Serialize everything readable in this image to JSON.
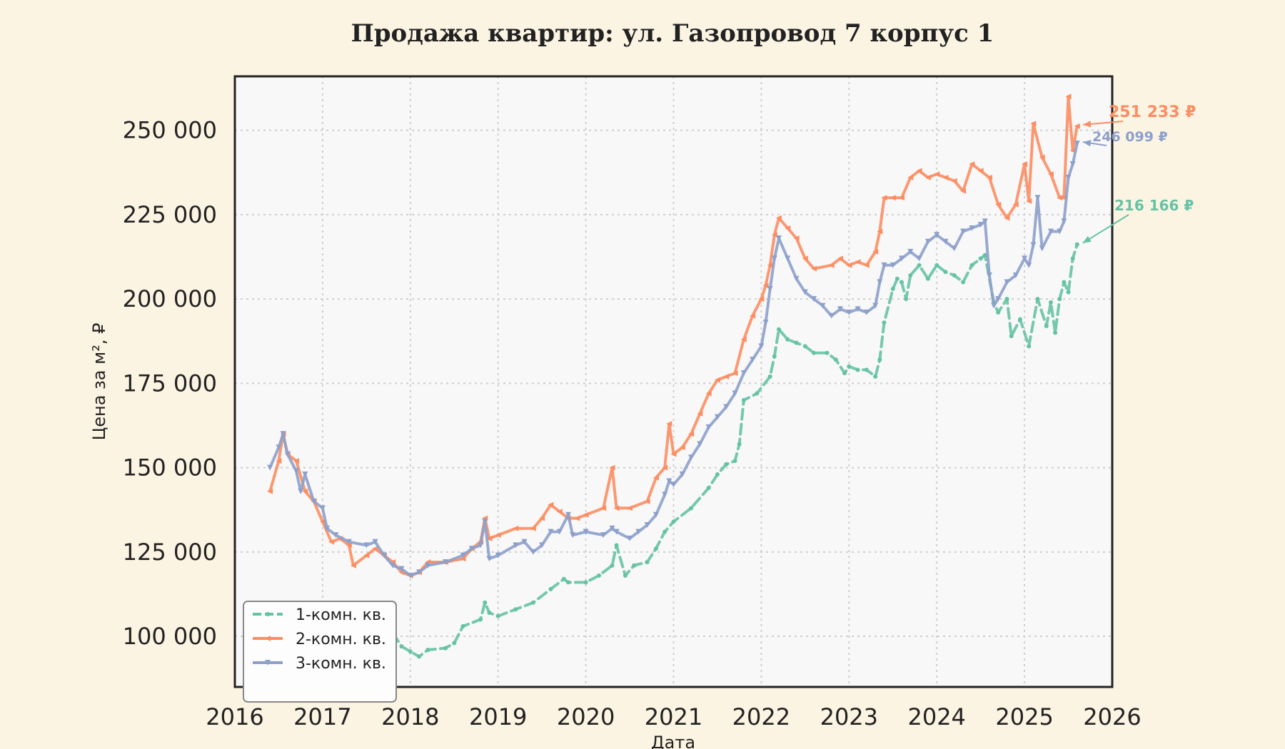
{
  "chart_data": {
    "type": "line",
    "title": "Продажа квартир: ул. Газопровод 7 корпус 1",
    "xlabel": "Дата",
    "ylabel": "Цена за м², ₽",
    "xlim": [
      2016,
      2026
    ],
    "ylim": [
      85000,
      266000
    ],
    "x_ticks": [
      "2016",
      "2017",
      "2018",
      "2019",
      "2020",
      "2021",
      "2022",
      "2023",
      "2024",
      "2025",
      "2026"
    ],
    "y_ticks": [
      "100 000",
      "125 000",
      "150 000",
      "175 000",
      "200 000",
      "225 000",
      "250 000"
    ],
    "grid": true,
    "legend_position": "bottom-left",
    "series": [
      {
        "name": "1-комн. кв.",
        "color": "#66c2a5",
        "line_style": "dashed",
        "marker": "circle",
        "end_label": "216 166 ₽",
        "points": [
          [
            2017.8,
            101000
          ],
          [
            2017.9,
            97000
          ],
          [
            2018.0,
            95500
          ],
          [
            2018.1,
            94000
          ],
          [
            2018.2,
            96000
          ],
          [
            2018.4,
            96500
          ],
          [
            2018.5,
            98000
          ],
          [
            2018.6,
            103000
          ],
          [
            2018.8,
            105000
          ],
          [
            2018.85,
            110000
          ],
          [
            2018.9,
            107000
          ],
          [
            2019.0,
            106000
          ],
          [
            2019.2,
            108000
          ],
          [
            2019.4,
            110000
          ],
          [
            2019.6,
            114000
          ],
          [
            2019.75,
            117000
          ],
          [
            2019.8,
            116000
          ],
          [
            2020.0,
            116000
          ],
          [
            2020.15,
            118000
          ],
          [
            2020.3,
            121000
          ],
          [
            2020.35,
            127000
          ],
          [
            2020.45,
            118000
          ],
          [
            2020.55,
            121000
          ],
          [
            2020.7,
            122000
          ],
          [
            2020.8,
            126000
          ],
          [
            2020.9,
            131000
          ],
          [
            2021.0,
            134000
          ],
          [
            2021.2,
            138000
          ],
          [
            2021.4,
            144000
          ],
          [
            2021.5,
            148000
          ],
          [
            2021.6,
            151000
          ],
          [
            2021.7,
            152000
          ],
          [
            2021.75,
            157000
          ],
          [
            2021.8,
            170000
          ],
          [
            2021.95,
            172000
          ],
          [
            2022.1,
            177000
          ],
          [
            2022.15,
            183000
          ],
          [
            2022.2,
            191000
          ],
          [
            2022.3,
            188000
          ],
          [
            2022.4,
            187000
          ],
          [
            2022.5,
            186000
          ],
          [
            2022.6,
            184000
          ],
          [
            2022.75,
            184000
          ],
          [
            2022.85,
            182000
          ],
          [
            2022.95,
            178000
          ],
          [
            2023.0,
            180000
          ],
          [
            2023.1,
            179000
          ],
          [
            2023.2,
            179000
          ],
          [
            2023.3,
            177000
          ],
          [
            2023.35,
            182000
          ],
          [
            2023.4,
            193000
          ],
          [
            2023.5,
            203000
          ],
          [
            2023.55,
            206000
          ],
          [
            2023.6,
            205000
          ],
          [
            2023.65,
            200000
          ],
          [
            2023.7,
            207000
          ],
          [
            2023.8,
            210000
          ],
          [
            2023.9,
            206000
          ],
          [
            2024.0,
            210000
          ],
          [
            2024.1,
            208000
          ],
          [
            2024.2,
            207000
          ],
          [
            2024.3,
            205000
          ],
          [
            2024.4,
            210000
          ],
          [
            2024.5,
            212000
          ],
          [
            2024.55,
            213000
          ],
          [
            2024.65,
            199000
          ],
          [
            2024.7,
            196000
          ],
          [
            2024.8,
            200000
          ],
          [
            2024.85,
            189000
          ],
          [
            2024.95,
            194000
          ],
          [
            2025.05,
            186000
          ],
          [
            2025.15,
            200000
          ],
          [
            2025.25,
            192000
          ],
          [
            2025.3,
            199000
          ],
          [
            2025.35,
            190000
          ],
          [
            2025.4,
            200000
          ],
          [
            2025.45,
            205000
          ],
          [
            2025.5,
            202000
          ],
          [
            2025.55,
            212000
          ],
          [
            2025.6,
            216166
          ]
        ]
      },
      {
        "name": "2-комн. кв.",
        "color": "#fc8d62",
        "line_style": "solid",
        "marker": "triangle-left",
        "end_label": "251 233 ₽",
        "points": [
          [
            2016.4,
            143000
          ],
          [
            2016.5,
            152000
          ],
          [
            2016.55,
            160000
          ],
          [
            2016.6,
            154000
          ],
          [
            2016.7,
            152000
          ],
          [
            2016.8,
            143000
          ],
          [
            2016.9,
            140000
          ],
          [
            2017.0,
            134000
          ],
          [
            2017.1,
            128000
          ],
          [
            2017.2,
            129000
          ],
          [
            2017.3,
            127000
          ],
          [
            2017.35,
            121000
          ],
          [
            2017.5,
            124000
          ],
          [
            2017.6,
            126000
          ],
          [
            2017.7,
            124000
          ],
          [
            2017.8,
            122000
          ],
          [
            2017.9,
            119000
          ],
          [
            2018.0,
            118000
          ],
          [
            2018.1,
            119000
          ],
          [
            2018.2,
            122000
          ],
          [
            2018.4,
            122000
          ],
          [
            2018.6,
            123000
          ],
          [
            2018.7,
            126000
          ],
          [
            2018.8,
            128000
          ],
          [
            2018.85,
            135000
          ],
          [
            2018.9,
            129000
          ],
          [
            2019.0,
            130000
          ],
          [
            2019.2,
            132000
          ],
          [
            2019.4,
            132000
          ],
          [
            2019.5,
            135000
          ],
          [
            2019.6,
            139000
          ],
          [
            2019.7,
            137000
          ],
          [
            2019.8,
            135000
          ],
          [
            2019.9,
            135000
          ],
          [
            2020.0,
            136000
          ],
          [
            2020.2,
            138000
          ],
          [
            2020.3,
            150000
          ],
          [
            2020.35,
            138000
          ],
          [
            2020.5,
            138000
          ],
          [
            2020.7,
            140000
          ],
          [
            2020.8,
            147000
          ],
          [
            2020.9,
            150000
          ],
          [
            2020.95,
            163000
          ],
          [
            2021.0,
            154000
          ],
          [
            2021.1,
            156000
          ],
          [
            2021.2,
            160000
          ],
          [
            2021.3,
            166000
          ],
          [
            2021.4,
            172000
          ],
          [
            2021.5,
            176000
          ],
          [
            2021.6,
            177000
          ],
          [
            2021.7,
            178000
          ],
          [
            2021.8,
            188000
          ],
          [
            2021.9,
            195000
          ],
          [
            2022.0,
            200000
          ],
          [
            2022.05,
            204000
          ],
          [
            2022.1,
            210000
          ],
          [
            2022.15,
            219000
          ],
          [
            2022.2,
            224000
          ],
          [
            2022.3,
            221000
          ],
          [
            2022.4,
            218000
          ],
          [
            2022.5,
            212000
          ],
          [
            2022.6,
            209000
          ],
          [
            2022.8,
            210000
          ],
          [
            2022.9,
            212000
          ],
          [
            2023.0,
            210000
          ],
          [
            2023.1,
            211000
          ],
          [
            2023.2,
            210000
          ],
          [
            2023.3,
            214000
          ],
          [
            2023.35,
            220000
          ],
          [
            2023.4,
            230000
          ],
          [
            2023.5,
            230000
          ],
          [
            2023.6,
            230000
          ],
          [
            2023.7,
            236000
          ],
          [
            2023.8,
            238000
          ],
          [
            2023.9,
            236000
          ],
          [
            2024.0,
            237000
          ],
          [
            2024.1,
            236000
          ],
          [
            2024.2,
            235000
          ],
          [
            2024.3,
            232000
          ],
          [
            2024.4,
            240000
          ],
          [
            2024.5,
            238000
          ],
          [
            2024.6,
            236000
          ],
          [
            2024.7,
            228000
          ],
          [
            2024.8,
            224000
          ],
          [
            2024.9,
            228000
          ],
          [
            2025.0,
            240000
          ],
          [
            2025.05,
            229000
          ],
          [
            2025.1,
            252000
          ],
          [
            2025.2,
            242000
          ],
          [
            2025.3,
            237000
          ],
          [
            2025.4,
            230000
          ],
          [
            2025.45,
            230000
          ],
          [
            2025.5,
            260000
          ],
          [
            2025.55,
            244000
          ],
          [
            2025.6,
            251233
          ]
        ]
      },
      {
        "name": "3-комн. кв.",
        "color": "#8da0cb",
        "line_style": "solid",
        "marker": "triangle-down",
        "end_label": "246 099 ₽",
        "points": [
          [
            2016.4,
            150000
          ],
          [
            2016.5,
            156000
          ],
          [
            2016.55,
            160000
          ],
          [
            2016.6,
            154000
          ],
          [
            2016.7,
            149000
          ],
          [
            2016.75,
            143000
          ],
          [
            2016.8,
            148000
          ],
          [
            2016.9,
            140000
          ],
          [
            2017.0,
            138000
          ],
          [
            2017.05,
            132000
          ],
          [
            2017.15,
            130000
          ],
          [
            2017.3,
            128000
          ],
          [
            2017.5,
            127000
          ],
          [
            2017.6,
            128000
          ],
          [
            2017.7,
            124000
          ],
          [
            2017.8,
            121000
          ],
          [
            2017.9,
            120000
          ],
          [
            2018.0,
            118000
          ],
          [
            2018.1,
            119000
          ],
          [
            2018.2,
            121000
          ],
          [
            2018.4,
            122000
          ],
          [
            2018.6,
            124000
          ],
          [
            2018.7,
            126000
          ],
          [
            2018.8,
            127000
          ],
          [
            2018.85,
            134000
          ],
          [
            2018.9,
            123000
          ],
          [
            2019.0,
            124000
          ],
          [
            2019.2,
            127000
          ],
          [
            2019.3,
            128000
          ],
          [
            2019.4,
            125000
          ],
          [
            2019.5,
            127000
          ],
          [
            2019.6,
            131000
          ],
          [
            2019.7,
            131000
          ],
          [
            2019.8,
            136000
          ],
          [
            2019.85,
            130000
          ],
          [
            2020.0,
            131000
          ],
          [
            2020.2,
            130000
          ],
          [
            2020.3,
            132000
          ],
          [
            2020.35,
            131000
          ],
          [
            2020.5,
            129000
          ],
          [
            2020.6,
            131000
          ],
          [
            2020.7,
            133000
          ],
          [
            2020.8,
            136000
          ],
          [
            2020.9,
            142000
          ],
          [
            2020.95,
            146000
          ],
          [
            2021.0,
            145000
          ],
          [
            2021.1,
            148000
          ],
          [
            2021.2,
            153000
          ],
          [
            2021.3,
            157000
          ],
          [
            2021.4,
            162000
          ],
          [
            2021.5,
            165000
          ],
          [
            2021.6,
            168000
          ],
          [
            2021.7,
            172000
          ],
          [
            2021.8,
            178000
          ],
          [
            2021.9,
            182000
          ],
          [
            2022.0,
            186000
          ],
          [
            2022.05,
            193000
          ],
          [
            2022.1,
            203000
          ],
          [
            2022.15,
            212000
          ],
          [
            2022.2,
            218000
          ],
          [
            2022.3,
            212000
          ],
          [
            2022.4,
            206000
          ],
          [
            2022.5,
            202000
          ],
          [
            2022.6,
            200000
          ],
          [
            2022.7,
            198000
          ],
          [
            2022.8,
            195000
          ],
          [
            2022.9,
            197000
          ],
          [
            2023.0,
            196000
          ],
          [
            2023.1,
            197000
          ],
          [
            2023.2,
            196000
          ],
          [
            2023.3,
            198000
          ],
          [
            2023.35,
            205000
          ],
          [
            2023.4,
            210000
          ],
          [
            2023.5,
            210000
          ],
          [
            2023.6,
            212000
          ],
          [
            2023.7,
            214000
          ],
          [
            2023.8,
            212000
          ],
          [
            2023.9,
            217000
          ],
          [
            2024.0,
            219000
          ],
          [
            2024.1,
            217000
          ],
          [
            2024.2,
            215000
          ],
          [
            2024.3,
            220000
          ],
          [
            2024.4,
            221000
          ],
          [
            2024.5,
            222000
          ],
          [
            2024.55,
            223000
          ],
          [
            2024.6,
            207000
          ],
          [
            2024.65,
            198000
          ],
          [
            2024.7,
            200000
          ],
          [
            2024.8,
            205000
          ],
          [
            2024.9,
            207000
          ],
          [
            2025.0,
            212000
          ],
          [
            2025.05,
            210000
          ],
          [
            2025.1,
            216000
          ],
          [
            2025.15,
            230000
          ],
          [
            2025.2,
            215000
          ],
          [
            2025.3,
            220000
          ],
          [
            2025.4,
            220000
          ],
          [
            2025.45,
            223000
          ],
          [
            2025.5,
            236000
          ],
          [
            2025.55,
            240000
          ],
          [
            2025.6,
            246099
          ]
        ]
      }
    ]
  }
}
